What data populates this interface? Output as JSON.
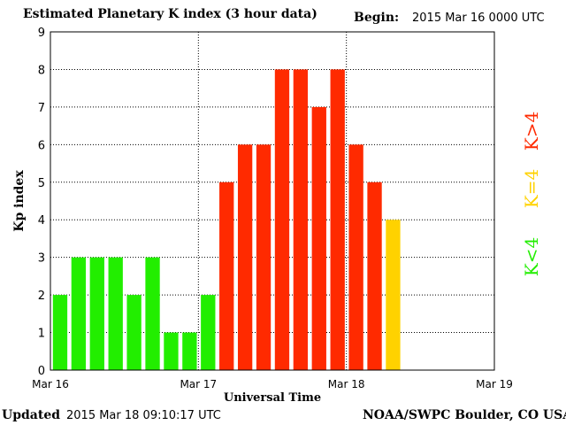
{
  "header": {
    "title": "Estimated Planetary K index (3 hour data)",
    "begin_label": "Begin:",
    "begin_value": "2015 Mar 16 0000 UTC"
  },
  "footer": {
    "updated_label": "Updated",
    "updated_value": "2015 Mar 18 09:10:17 UTC",
    "credit": "NOAA/SWPC Boulder, CO USA"
  },
  "chart_data": {
    "type": "bar",
    "xlabel": "Universal Time",
    "ylabel": "Kp index",
    "ylim": [
      0,
      9
    ],
    "yticks": [
      0,
      1,
      2,
      3,
      4,
      5,
      6,
      7,
      8,
      9
    ],
    "xticks": [
      "Mar 16",
      "Mar 17",
      "Mar 18",
      "Mar 19"
    ],
    "bar_slots_total": 24,
    "values": [
      2,
      3,
      3,
      3,
      2,
      3,
      1,
      1,
      2,
      5,
      6,
      6,
      8,
      8,
      7,
      8,
      6,
      5,
      4
    ],
    "grid": true,
    "legend": [
      {
        "label": "K<4",
        "color": "#22ee00"
      },
      {
        "label": "K=4",
        "color": "#ffd200"
      },
      {
        "label": "K>4",
        "color": "#ff2a00"
      }
    ],
    "colors": {
      "low": "#22ee00",
      "mid": "#ffd200",
      "high": "#ff2a00"
    }
  }
}
